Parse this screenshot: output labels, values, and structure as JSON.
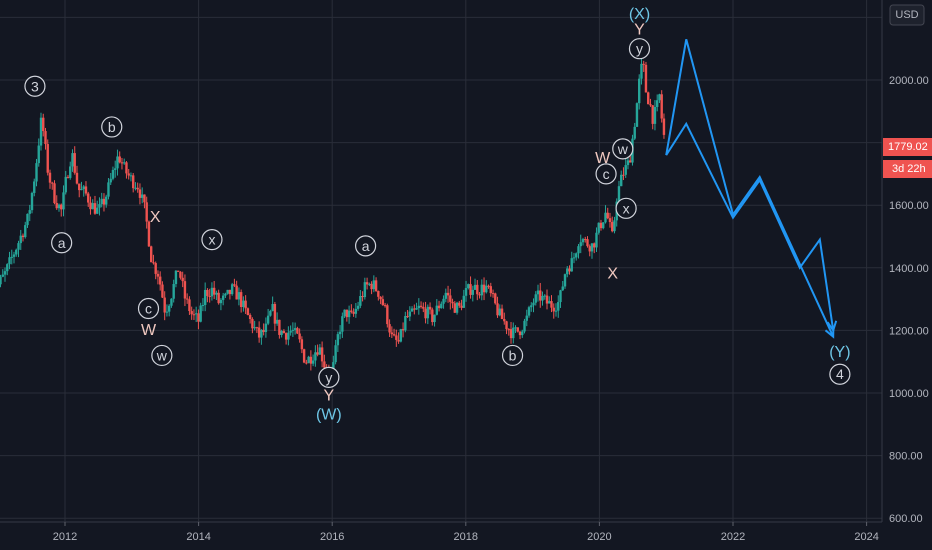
{
  "chart_data": {
    "type": "candlestick",
    "currency": "USD",
    "x_ticks": [
      "2012",
      "2014",
      "2016",
      "2018",
      "2020",
      "2022",
      "2024"
    ],
    "y_ticks": [
      600,
      800,
      1000,
      1200,
      1400,
      1600,
      2000
    ],
    "ylim": [
      600,
      2200
    ],
    "xlim": [
      2010.9,
      2024.35
    ],
    "grid": true,
    "last_price": "1779.02",
    "countdown": "3d 22h",
    "price_path": [
      [
        2010.9,
        1310
      ],
      [
        2011.1,
        1380
      ],
      [
        2011.3,
        1480
      ],
      [
        2011.45,
        1560
      ],
      [
        2011.55,
        1700
      ],
      [
        2011.65,
        1880
      ],
      [
        2011.75,
        1700
      ],
      [
        2011.85,
        1620
      ],
      [
        2011.95,
        1580
      ],
      [
        2012.0,
        1660
      ],
      [
        2012.1,
        1770
      ],
      [
        2012.2,
        1650
      ],
      [
        2012.3,
        1640
      ],
      [
        2012.4,
        1600
      ],
      [
        2012.5,
        1580
      ],
      [
        2012.6,
        1620
      ],
      [
        2012.7,
        1690
      ],
      [
        2012.8,
        1760
      ],
      [
        2012.9,
        1710
      ],
      [
        2013.0,
        1680
      ],
      [
        2013.1,
        1660
      ],
      [
        2013.2,
        1580
      ],
      [
        2013.3,
        1420
      ],
      [
        2013.4,
        1380
      ],
      [
        2013.5,
        1260
      ],
      [
        2013.6,
        1320
      ],
      [
        2013.7,
        1400
      ],
      [
        2013.8,
        1300
      ],
      [
        2013.9,
        1250
      ],
      [
        2014.0,
        1230
      ],
      [
        2014.1,
        1320
      ],
      [
        2014.2,
        1330
      ],
      [
        2014.3,
        1290
      ],
      [
        2014.4,
        1300
      ],
      [
        2014.5,
        1330
      ],
      [
        2014.6,
        1310
      ],
      [
        2014.7,
        1260
      ],
      [
        2014.8,
        1220
      ],
      [
        2014.9,
        1180
      ],
      [
        2015.0,
        1200
      ],
      [
        2015.1,
        1270
      ],
      [
        2015.2,
        1200
      ],
      [
        2015.3,
        1190
      ],
      [
        2015.4,
        1200
      ],
      [
        2015.5,
        1170
      ],
      [
        2015.6,
        1100
      ],
      [
        2015.7,
        1120
      ],
      [
        2015.8,
        1150
      ],
      [
        2015.9,
        1080
      ],
      [
        2016.0,
        1060
      ],
      [
        2016.1,
        1200
      ],
      [
        2016.2,
        1260
      ],
      [
        2016.3,
        1240
      ],
      [
        2016.4,
        1290
      ],
      [
        2016.5,
        1340
      ],
      [
        2016.6,
        1350
      ],
      [
        2016.7,
        1320
      ],
      [
        2016.8,
        1260
      ],
      [
        2016.9,
        1170
      ],
      [
        2017.0,
        1160
      ],
      [
        2017.1,
        1240
      ],
      [
        2017.2,
        1250
      ],
      [
        2017.3,
        1270
      ],
      [
        2017.4,
        1260
      ],
      [
        2017.5,
        1240
      ],
      [
        2017.6,
        1280
      ],
      [
        2017.7,
        1320
      ],
      [
        2017.8,
        1280
      ],
      [
        2017.9,
        1270
      ],
      [
        2018.0,
        1320
      ],
      [
        2018.1,
        1340
      ],
      [
        2018.2,
        1330
      ],
      [
        2018.3,
        1340
      ],
      [
        2018.4,
        1300
      ],
      [
        2018.5,
        1250
      ],
      [
        2018.6,
        1220
      ],
      [
        2018.7,
        1190
      ],
      [
        2018.8,
        1200
      ],
      [
        2018.9,
        1230
      ],
      [
        2019.0,
        1290
      ],
      [
        2019.1,
        1310
      ],
      [
        2019.2,
        1290
      ],
      [
        2019.3,
        1280
      ],
      [
        2019.4,
        1290
      ],
      [
        2019.5,
        1400
      ],
      [
        2019.6,
        1420
      ],
      [
        2019.7,
        1500
      ],
      [
        2019.8,
        1480
      ],
      [
        2019.9,
        1470
      ],
      [
        2020.0,
        1530
      ],
      [
        2020.1,
        1580
      ],
      [
        2020.2,
        1490
      ],
      [
        2020.25,
        1620
      ],
      [
        2020.35,
        1700
      ],
      [
        2020.45,
        1740
      ],
      [
        2020.55,
        1900
      ],
      [
        2020.6,
        2000
      ],
      [
        2020.65,
        2060
      ],
      [
        2020.7,
        1960
      ],
      [
        2020.75,
        1930
      ],
      [
        2020.8,
        1880
      ],
      [
        2020.85,
        1900
      ],
      [
        2020.9,
        1950
      ],
      [
        2020.95,
        1840
      ],
      [
        2021.0,
        1780
      ]
    ],
    "projections": [
      {
        "name": "",
        "points": [
          [
            2021.0,
            1760
          ],
          [
            2021.3,
            2130
          ],
          [
            2022.0,
            1570
          ],
          [
            2022.4,
            1690
          ],
          [
            2023.5,
            1180
          ]
        ]
      },
      {
        "name": "",
        "points": [
          [
            2021.0,
            1760
          ],
          [
            2021.3,
            1860
          ],
          [
            2022.0,
            1560
          ],
          [
            2022.4,
            1680
          ],
          [
            2023.0,
            1400
          ],
          [
            2023.3,
            1490
          ],
          [
            2023.5,
            1200
          ]
        ]
      }
    ],
    "annotations": [
      {
        "text": "3",
        "x": 2011.55,
        "y": 1980,
        "style": "circle"
      },
      {
        "text": "a",
        "x": 2011.95,
        "y": 1480,
        "style": "circle"
      },
      {
        "text": "b",
        "x": 2012.7,
        "y": 1850,
        "style": "circle"
      },
      {
        "text": "X",
        "x": 2013.35,
        "y": 1560,
        "style": "plain"
      },
      {
        "text": "c",
        "x": 2013.25,
        "y": 1270,
        "style": "circle"
      },
      {
        "text": "W",
        "x": 2013.25,
        "y": 1200,
        "style": "plain"
      },
      {
        "text": "w",
        "x": 2013.45,
        "y": 1120,
        "style": "circle"
      },
      {
        "text": "x",
        "x": 2014.2,
        "y": 1490,
        "style": "circle"
      },
      {
        "text": "a",
        "x": 2016.5,
        "y": 1470,
        "style": "circle"
      },
      {
        "text": "y",
        "x": 2015.95,
        "y": 1050,
        "style": "circle"
      },
      {
        "text": "Y",
        "x": 2015.95,
        "y": 990,
        "style": "plain"
      },
      {
        "text": "(W)",
        "x": 2015.95,
        "y": 930,
        "style": "blue"
      },
      {
        "text": "b",
        "x": 2018.7,
        "y": 1120,
        "style": "circle"
      },
      {
        "text": "W",
        "x": 2020.05,
        "y": 1750,
        "style": "plain"
      },
      {
        "text": "c",
        "x": 2020.1,
        "y": 1700,
        "style": "circle"
      },
      {
        "text": "w",
        "x": 2020.35,
        "y": 1780,
        "style": "circle"
      },
      {
        "text": "x",
        "x": 2020.4,
        "y": 1590,
        "style": "circle"
      },
      {
        "text": "X",
        "x": 2020.2,
        "y": 1380,
        "style": "plain"
      },
      {
        "text": "y",
        "x": 2020.6,
        "y": 2100,
        "style": "circle"
      },
      {
        "text": "Y",
        "x": 2020.6,
        "y": 2160,
        "style": "plain"
      },
      {
        "text": "(X)",
        "x": 2020.6,
        "y": 2210,
        "style": "blue"
      },
      {
        "text": "(Y)",
        "x": 2023.6,
        "y": 1130,
        "style": "blue"
      },
      {
        "text": "4",
        "x": 2023.6,
        "y": 1060,
        "style": "circle"
      }
    ],
    "colors": {
      "background": "#131722",
      "up": "#26a69a",
      "down": "#ef5350",
      "projection": "#2196f3",
      "grid": "#2a2e39",
      "annotation": "#d1d4dc",
      "wave_plain": "#f0c8c0",
      "wave_blue": "#6ec6e6"
    }
  }
}
